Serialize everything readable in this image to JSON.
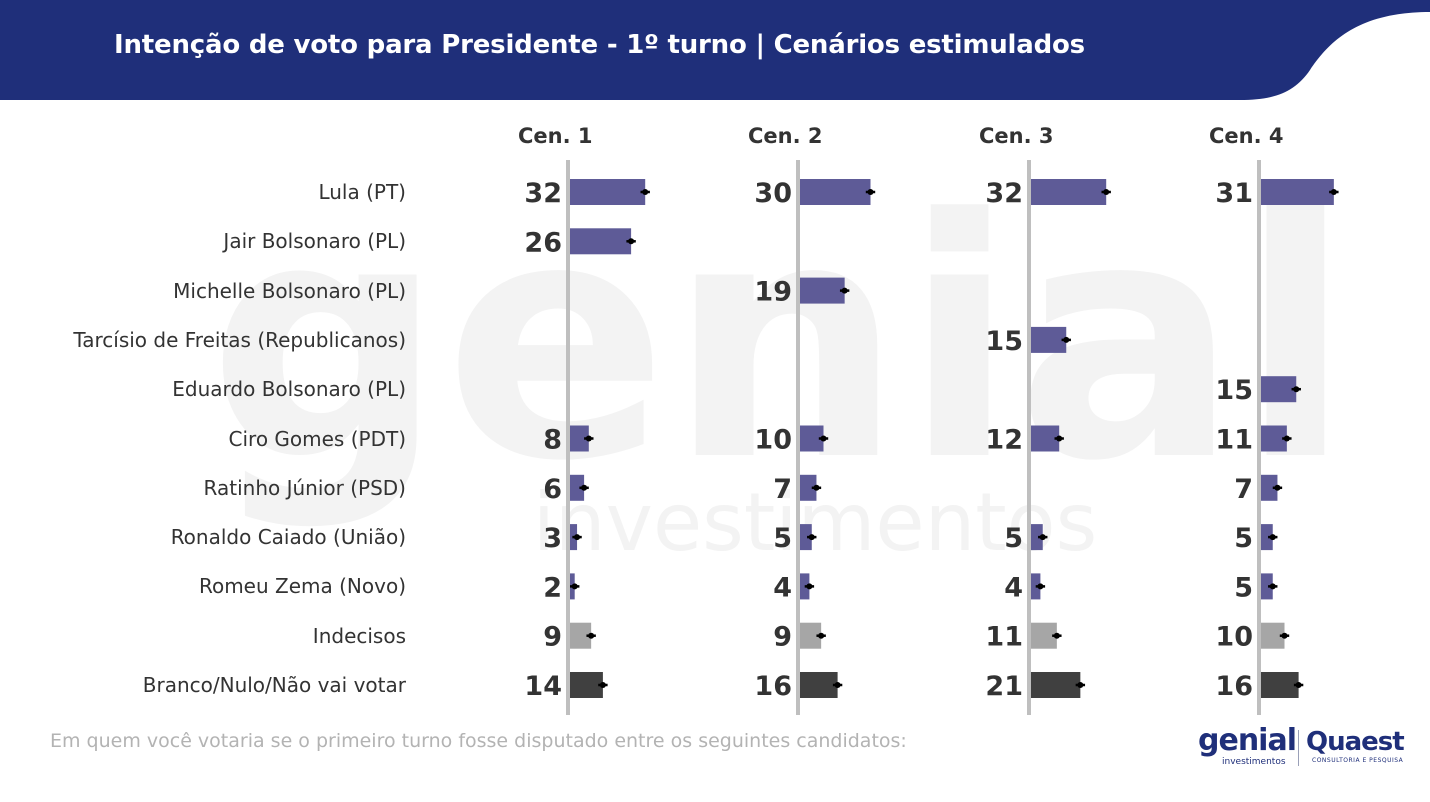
{
  "header": {
    "title": "Intenção de voto para Presidente - 1º turno | Cenários estimulados"
  },
  "footer": {
    "question": "Em quem você votaria se o primeiro turno fosse disputado entre os seguintes candidatos:",
    "logo_genial": "genial",
    "logo_genial_sub": "investimentos",
    "logo_quaest": "Quaest",
    "logo_quaest_sub": "CONSULTORIA E PESQUISA"
  },
  "watermark": {
    "word1": "genial",
    "word2": "investimentos"
  },
  "colors": {
    "header": "#1f2f7a",
    "candidate": "#5e5b97",
    "undecided": "#a6a6a6",
    "blank": "#404040",
    "axis": "#bfbfbf",
    "error_bar": "#000000"
  },
  "chart_data": {
    "type": "bar",
    "orientation": "horizontal",
    "categories": [
      "Lula (PT)",
      "Jair Bolsonaro (PL)",
      "Michelle Bolsonaro (PL)",
      "Tarcísio de Freitas (Republicanos)",
      "Eduardo Bolsonaro (PL)",
      "Ciro Gomes (PDT)",
      "Ratinho Júnior (PSD)",
      "Ronaldo Caiado (União)",
      "Romeu Zema (Novo)",
      "Indecisos",
      "Branco/Nulo/Não vai votar"
    ],
    "category_kind": [
      "candidate",
      "candidate",
      "candidate",
      "candidate",
      "candidate",
      "candidate",
      "candidate",
      "candidate",
      "candidate",
      "undecided",
      "blank"
    ],
    "series": [
      {
        "name": "Cen. 1",
        "values": [
          32,
          26,
          null,
          null,
          null,
          8,
          6,
          3,
          2,
          9,
          14
        ]
      },
      {
        "name": "Cen. 2",
        "values": [
          30,
          null,
          19,
          null,
          null,
          10,
          7,
          5,
          4,
          9,
          16
        ]
      },
      {
        "name": "Cen. 3",
        "values": [
          32,
          null,
          null,
          15,
          null,
          12,
          null,
          5,
          4,
          11,
          21
        ]
      },
      {
        "name": "Cen. 4",
        "values": [
          31,
          null,
          null,
          null,
          15,
          11,
          7,
          5,
          5,
          10,
          16
        ]
      }
    ],
    "error_margin": 2,
    "unit": "%",
    "legend": "none",
    "grid": false
  }
}
